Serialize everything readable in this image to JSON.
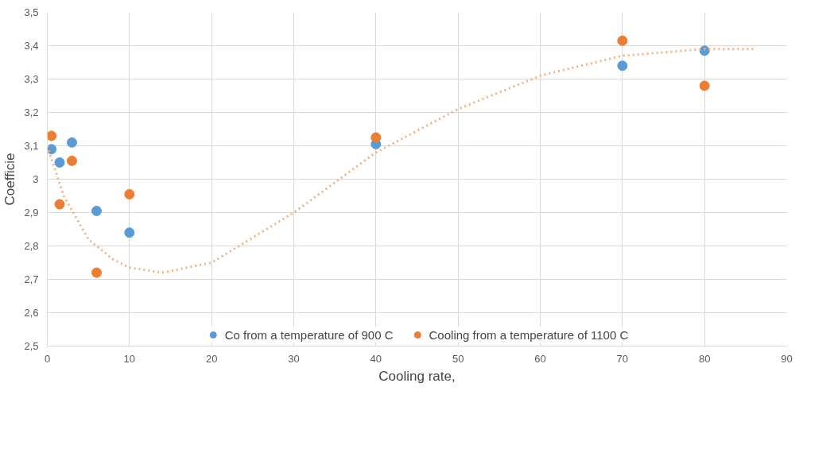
{
  "chart_data": {
    "type": "scatter",
    "xlabel": "Cooling rate,",
    "ylabel": "Coefficie",
    "xlim": [
      0,
      90
    ],
    "xticks": [
      0,
      10,
      20,
      30,
      40,
      50,
      60,
      70,
      80,
      90
    ],
    "ylim": [
      2.5,
      3.5
    ],
    "yticks": [
      {
        "value": 2.5,
        "label": "2,5"
      },
      {
        "value": 2.6,
        "label": "2,6"
      },
      {
        "value": 2.7,
        "label": "2,7"
      },
      {
        "value": 2.8,
        "label": "2,8"
      },
      {
        "value": 2.9,
        "label": "2,9"
      },
      {
        "value": 3.0,
        "label": "3"
      },
      {
        "value": 3.1,
        "label": "3,1"
      },
      {
        "value": 3.2,
        "label": "3,2"
      },
      {
        "value": 3.3,
        "label": "3,3"
      },
      {
        "value": 3.4,
        "label": "3,4"
      },
      {
        "value": 3.5,
        "label": "3,5"
      }
    ],
    "grid": true,
    "legend": "bottom",
    "marker": "circle",
    "series": [
      {
        "name": "Co from a temperature of 900 C",
        "color": "#5b9bd5",
        "x": [
          0.5,
          1.5,
          3,
          6,
          10,
          40,
          70,
          80
        ],
        "values": [
          3.09,
          3.05,
          3.11,
          2.905,
          2.84,
          3.105,
          3.34,
          3.385
        ]
      },
      {
        "name": "Cooling from a temperature of 1100 C",
        "color": "#ed7d31",
        "x": [
          0.5,
          1.5,
          3,
          6,
          10,
          40,
          70,
          80
        ],
        "values": [
          3.13,
          2.925,
          3.055,
          2.72,
          2.955,
          3.125,
          3.415,
          3.28
        ]
      },
      {
        "type": "line",
        "color": "#f4b183",
        "line_style": "dotted",
        "marker": "none",
        "x": [
          0,
          2,
          5,
          8,
          10,
          14,
          20,
          30,
          40,
          50,
          60,
          70,
          80,
          86
        ],
        "values": [
          3.1,
          2.95,
          2.82,
          2.76,
          2.735,
          2.72,
          2.75,
          2.9,
          3.08,
          3.21,
          3.31,
          3.37,
          3.39,
          3.39
        ]
      }
    ]
  }
}
